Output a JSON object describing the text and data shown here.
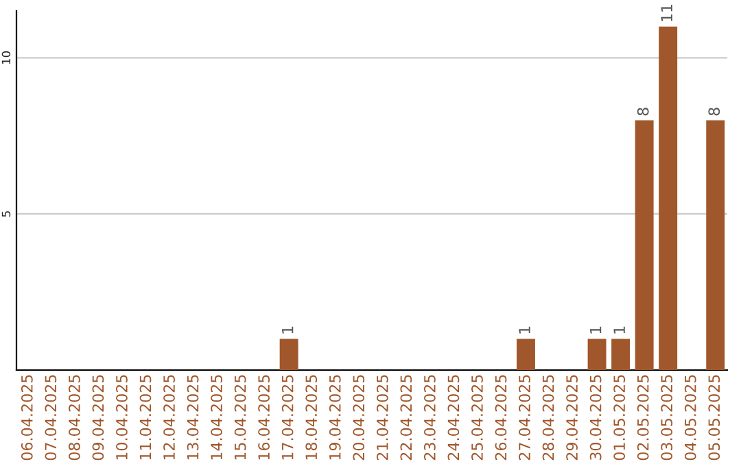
{
  "chart_data": {
    "type": "bar",
    "categories": [
      "06.04.2025",
      "07.04.2025",
      "08.04.2025",
      "09.04.2025",
      "10.04.2025",
      "11.04.2025",
      "12.04.2025",
      "13.04.2025",
      "14.04.2025",
      "15.04.2025",
      "16.04.2025",
      "17.04.2025",
      "18.04.2025",
      "19.04.2025",
      "20.04.2025",
      "21.04.2025",
      "22.04.2025",
      "23.04.2025",
      "24.04.2025",
      "25.04.2025",
      "26.04.2025",
      "27.04.2025",
      "28.04.2025",
      "29.04.2025",
      "30.04.2025",
      "01.05.2025",
      "02.05.2025",
      "03.05.2025",
      "04.05.2025",
      "05.05.2025"
    ],
    "values": [
      0,
      0,
      0,
      0,
      0,
      0,
      0,
      0,
      0,
      0,
      0,
      1,
      0,
      0,
      0,
      0,
      0,
      0,
      0,
      0,
      0,
      1,
      0,
      0,
      1,
      1,
      8,
      11,
      0,
      8
    ],
    "value_labels": [
      null,
      null,
      null,
      null,
      null,
      null,
      null,
      null,
      null,
      null,
      null,
      "1",
      null,
      null,
      null,
      null,
      null,
      null,
      null,
      null,
      null,
      "1",
      null,
      null,
      "1",
      "1",
      "8",
      "11",
      null,
      "8"
    ],
    "color": "#a0572b",
    "ylim": [
      0,
      11.5
    ],
    "yticks": [
      5,
      10
    ],
    "grid": "y"
  }
}
